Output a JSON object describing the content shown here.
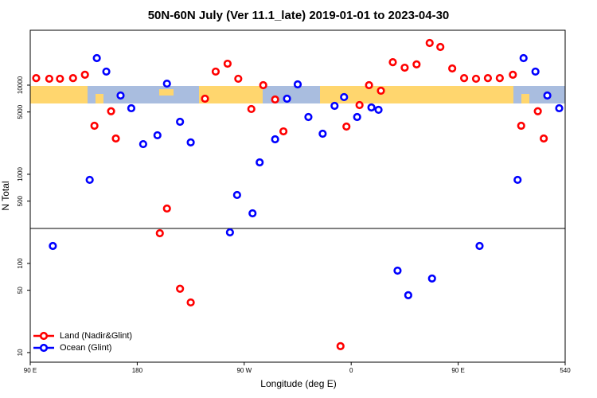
{
  "chart_data": {
    "type": "scatter",
    "title": "50N-60N July (Ver 11.1_late)   2019-01-01 to 2023-04-30",
    "x_label": "Longitude (deg E)",
    "y_label": "N Total",
    "xlim": [
      90,
      540
    ],
    "xticks": [
      {
        "value": 90,
        "label": "90 E"
      },
      180,
      {
        "value": 270,
        "label": "90 W"
      },
      {
        "value": 360,
        "label": "0"
      },
      {
        "value": 450,
        "label": "90 E"
      },
      540
    ],
    "ylim": [
      7.8,
      41300
    ],
    "yticks": [
      10,
      50,
      100,
      500,
      1000,
      5000,
      10000
    ],
    "log_y": true,
    "legend": "bottom-left",
    "series": [
      {
        "name": "Land (Nadir&Glint)",
        "color": "#ff0000",
        "x": [
          95,
          106,
          115,
          126,
          136,
          144,
          158,
          162,
          199,
          205,
          216,
          225,
          237,
          246,
          256,
          265,
          276,
          286,
          296,
          303,
          351,
          356,
          367,
          375,
          385,
          395,
          405,
          415,
          426,
          435,
          445,
          455,
          465,
          475,
          485,
          496,
          503,
          517,
          522
        ],
        "values": [
          12000,
          11800,
          11800,
          12000,
          13100,
          3500,
          5100,
          2520,
          218,
          413,
          52,
          36.5,
          7050,
          14200,
          17400,
          11800,
          5400,
          10000,
          6900,
          3030,
          11.8,
          3430,
          5980,
          10000,
          8660,
          18100,
          15700,
          17100,
          29700,
          26800,
          15400,
          12000,
          11800,
          12000,
          12000,
          13100,
          3500,
          5100,
          2520
        ]
      },
      {
        "name": "Ocean (Glint)",
        "color": "#0000ff",
        "x": [
          109,
          140,
          146,
          154,
          166,
          175,
          185,
          197,
          205,
          216,
          225,
          258,
          264,
          277,
          283,
          296,
          306,
          315,
          324,
          336,
          346,
          354,
          365,
          377,
          383,
          399,
          408,
          428,
          468,
          500,
          505,
          515,
          525,
          535
        ],
        "values": [
          157,
          866,
          20100,
          14200,
          7650,
          5510,
          2180,
          2740,
          10400,
          3880,
          2280,
          223,
          586,
          365,
          1360,
          2470,
          7050,
          10200,
          4390,
          2850,
          5860,
          7350,
          4390,
          5620,
          5290,
          83,
          44,
          67.7,
          157,
          866,
          20100,
          14200,
          7650,
          5510
        ]
      }
    ]
  }
}
